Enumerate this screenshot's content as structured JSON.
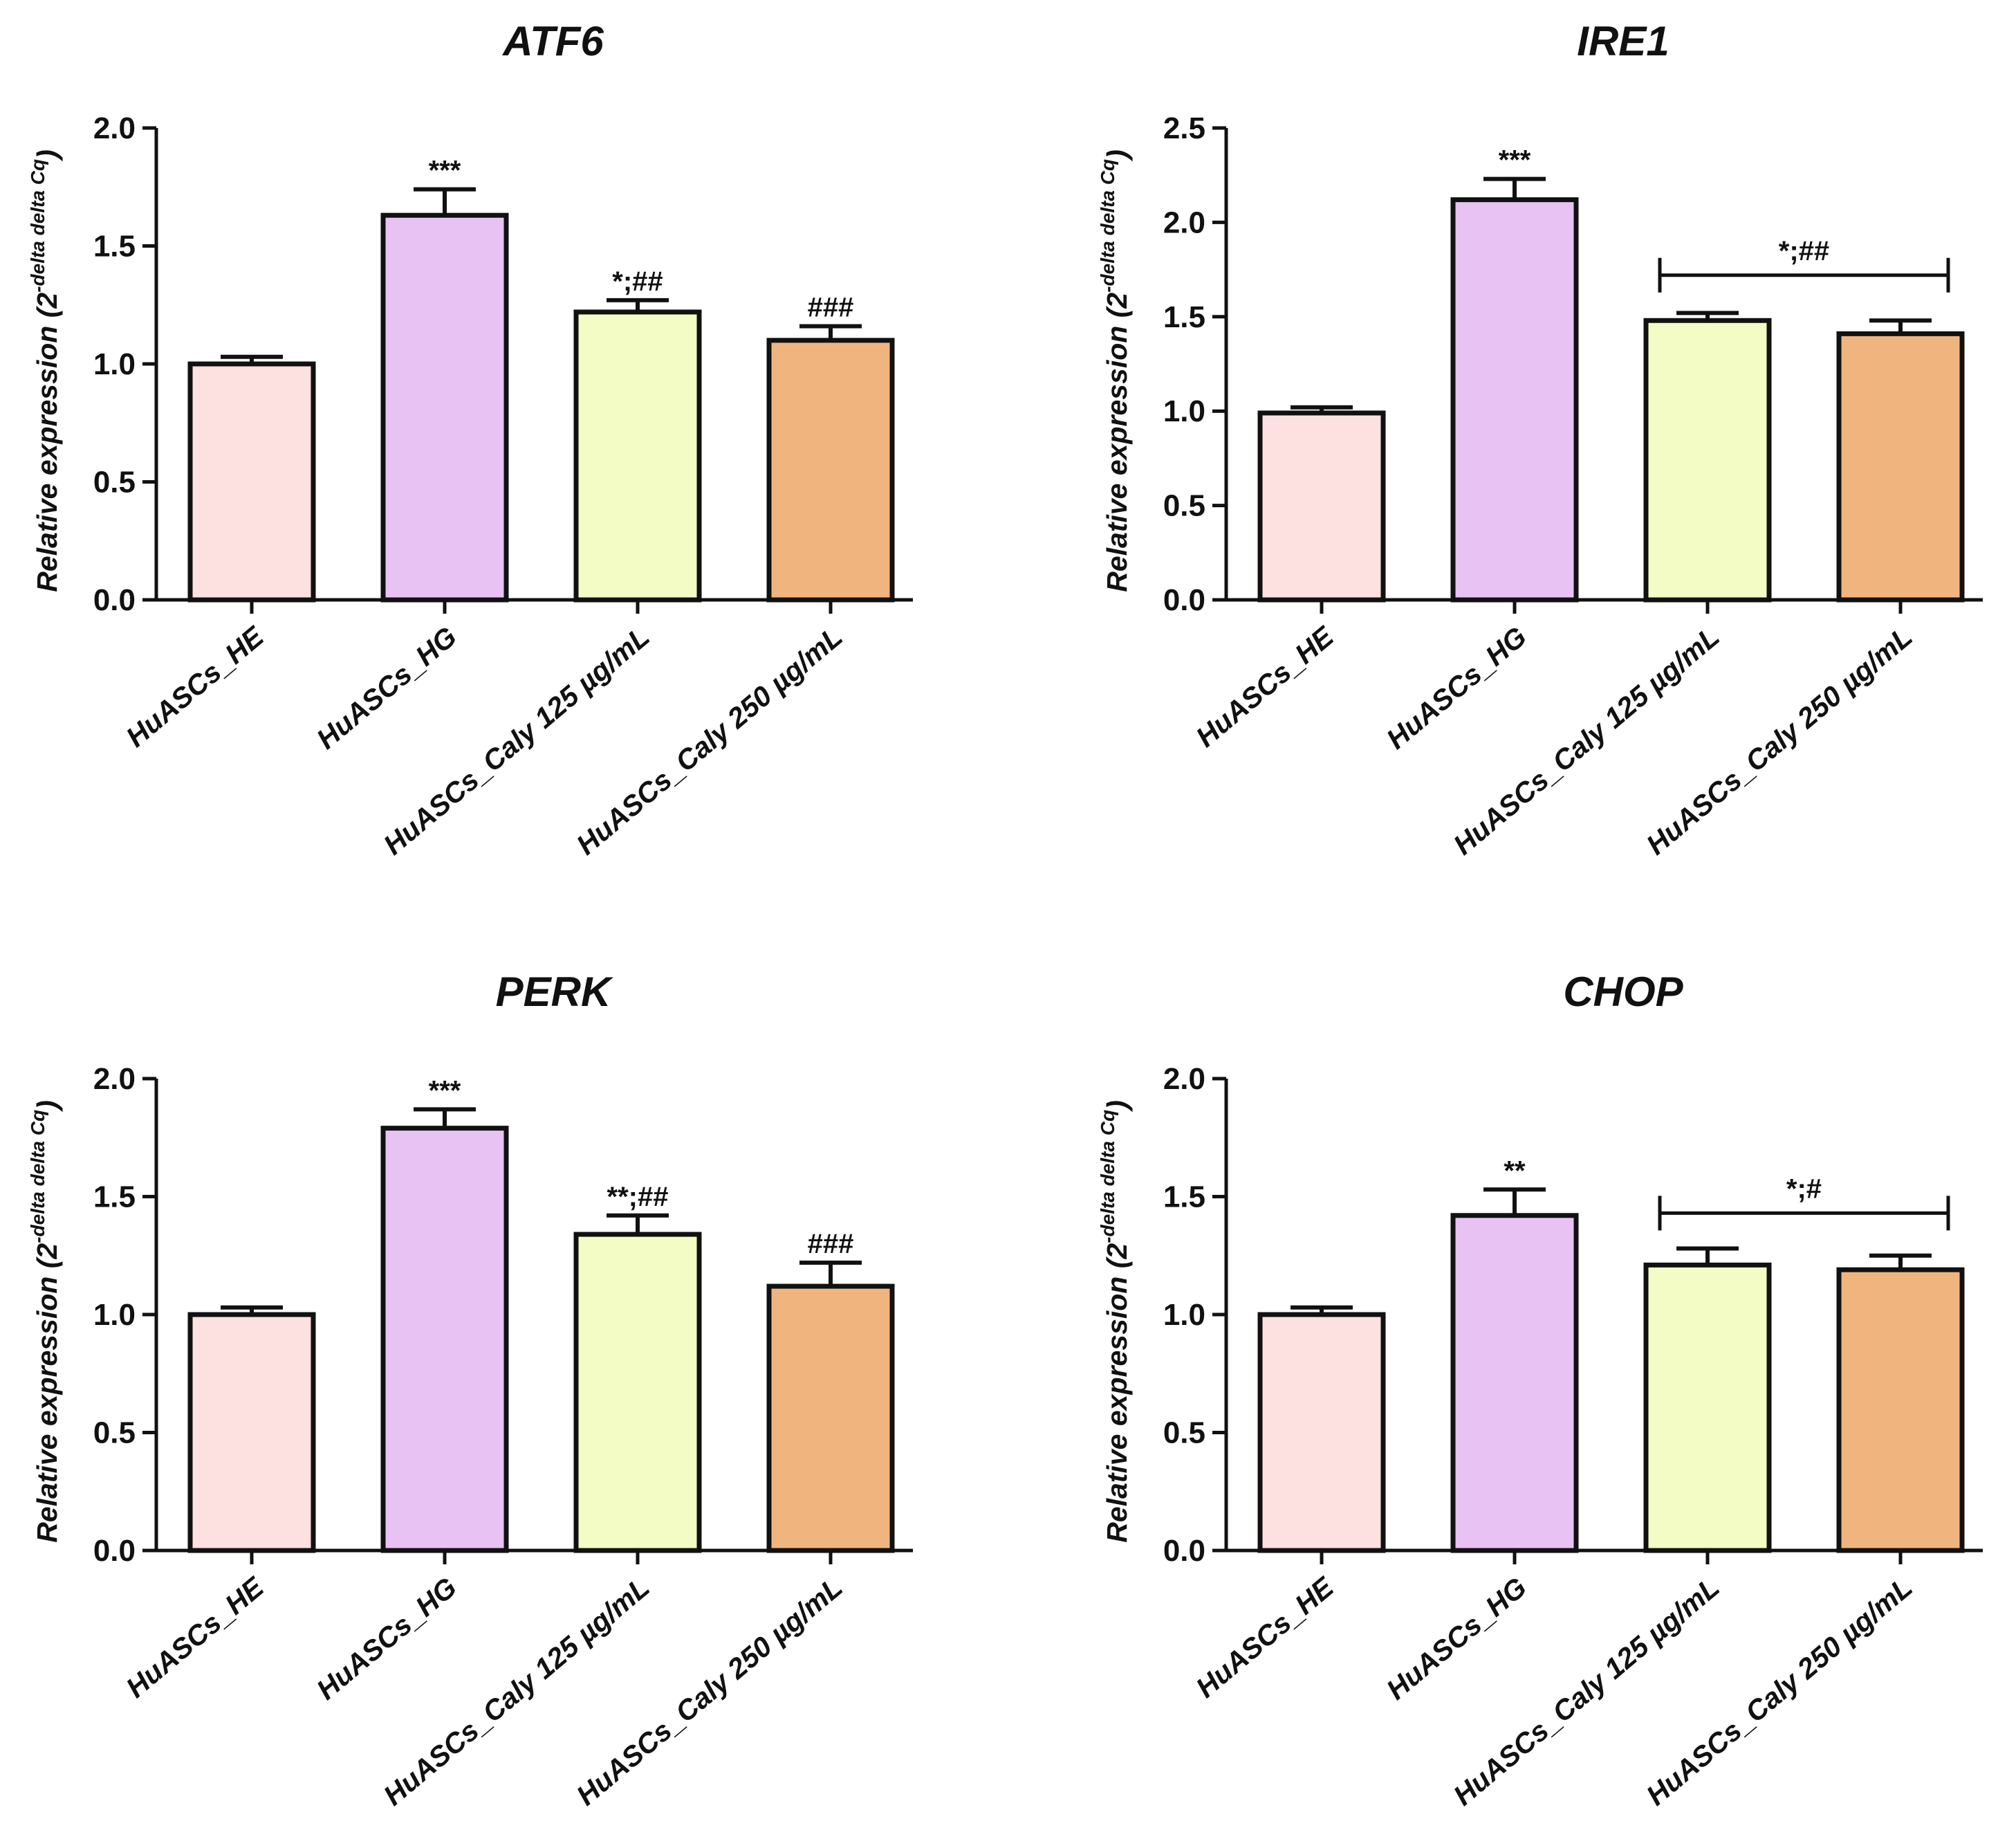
{
  "figure": {
    "bar_colors": [
      "#fde0e0",
      "#e9c2f4",
      "#f2fcc4",
      "#f0b57e"
    ],
    "axis_color": "#111111"
  },
  "chart_data": [
    {
      "type": "bar",
      "title": "ATF6",
      "categories": [
        "HuASCs_HE",
        "HuASCs_HG",
        "HuASCs_Caly 125 µg/mL",
        "HuASCs_Caly 250 µg/mL"
      ],
      "values": [
        1.0,
        1.63,
        1.22,
        1.1
      ],
      "errors": [
        0.03,
        0.11,
        0.05,
        0.06
      ],
      "annotations": [
        "",
        "***",
        "*;##",
        "###"
      ],
      "bracket": null,
      "ylabel": "Relative expression (2",
      "ylabel_sup": "-delta delta Cq",
      "ylabel_close": ")",
      "ylim": [
        0,
        2.0
      ],
      "yticks": [
        0,
        0.5,
        1.0,
        1.5,
        2.0
      ],
      "ytick_labels": [
        "0.0",
        "0.5",
        "1.0",
        "1.5",
        "2.0"
      ]
    },
    {
      "type": "bar",
      "title": "IRE1",
      "categories": [
        "HuASCs_HE",
        "HuASCs_HG",
        "HuASCs_Caly 125 µg/mL",
        "HuASCs_Caly 250 µg/mL"
      ],
      "values": [
        0.99,
        2.12,
        1.48,
        1.41
      ],
      "errors": [
        0.03,
        0.11,
        0.04,
        0.07
      ],
      "annotations": [
        "",
        "***",
        "",
        ""
      ],
      "bracket": {
        "from": 2,
        "to": 3,
        "level": 1.72,
        "label": "*;##"
      },
      "ylabel": "Relative expression (2",
      "ylabel_sup": "-delta delta Cq",
      "ylabel_close": ")",
      "ylim": [
        0,
        2.5
      ],
      "yticks": [
        0,
        0.5,
        1.0,
        1.5,
        2.0,
        2.5
      ],
      "ytick_labels": [
        "0.0",
        "0.5",
        "1.0",
        "1.5",
        "2.0",
        "2.5"
      ]
    },
    {
      "type": "bar",
      "title": "PERK",
      "categories": [
        "HuASCs_HE",
        "HuASCs_HG",
        "HuASCs_Caly 125 µg/mL",
        "HuASCs_Caly 250 µg/mL"
      ],
      "values": [
        1.0,
        1.79,
        1.34,
        1.12
      ],
      "errors": [
        0.03,
        0.08,
        0.08,
        0.1
      ],
      "annotations": [
        "",
        "***",
        "**;##",
        "###"
      ],
      "bracket": null,
      "ylabel": "Relative expression (2",
      "ylabel_sup": "-delta delta Cq",
      "ylabel_close": ")",
      "ylim": [
        0,
        2.0
      ],
      "yticks": [
        0,
        0.5,
        1.0,
        1.5,
        2.0
      ],
      "ytick_labels": [
        "0.0",
        "0.5",
        "1.0",
        "1.5",
        "2.0"
      ]
    },
    {
      "type": "bar",
      "title": "CHOP",
      "categories": [
        "HuASCs_HE",
        "HuASCs_HG",
        "HuASCs_Caly 125 µg/mL",
        "HuASCs_Caly 250 µg/mL"
      ],
      "values": [
        1.0,
        1.42,
        1.21,
        1.19
      ],
      "errors": [
        0.03,
        0.11,
        0.07,
        0.06
      ],
      "annotations": [
        "",
        "**",
        "",
        ""
      ],
      "bracket": {
        "from": 2,
        "to": 3,
        "level": 1.43,
        "label": "*;#"
      },
      "ylabel": "Relative expression (2",
      "ylabel_sup": "-delta delta Cq",
      "ylabel_close": ")",
      "ylim": [
        0,
        2.0
      ],
      "yticks": [
        0,
        0.5,
        1.0,
        1.5,
        2.0
      ],
      "ytick_labels": [
        "0.0",
        "0.5",
        "1.0",
        "1.5",
        "2.0"
      ]
    }
  ]
}
